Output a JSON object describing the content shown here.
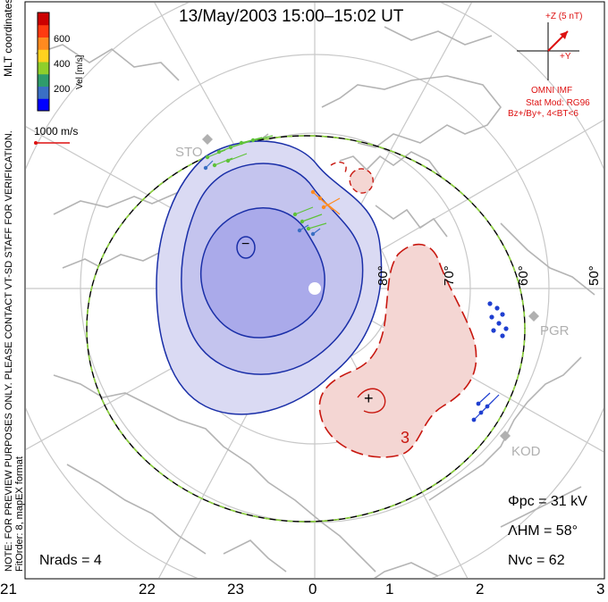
{
  "title": "13/May/2003 15:00–15:02 UT",
  "colorbar": {
    "label": "Vel [m/s]",
    "ticks": [
      "600",
      "400",
      "200"
    ],
    "colors": [
      "#0000ff",
      "#3a6fc4",
      "#2f9c6c",
      "#8fcf2b",
      "#ffd21f",
      "#ff8a1f",
      "#ff3a10",
      "#cc0000"
    ]
  },
  "coordinates_label": "MLT coordinates",
  "reference_vector": "1000 m/s",
  "imf": {
    "z_label": "+Z (5 nT)",
    "y_label": "+Y",
    "source": "OMNI IMF",
    "model": "Stat Mod: RG96",
    "condition": "Bz+/By+, 4<BT<6"
  },
  "latitude_labels": [
    "80°",
    "70°",
    "60°",
    "50°"
  ],
  "mlt_labels": [
    "21",
    "22",
    "23",
    "0",
    "1",
    "2",
    "3"
  ],
  "stations": [
    "STO",
    "PGR",
    "KOD"
  ],
  "contour_labels": {
    "min_marker": "−",
    "max_marker": "+",
    "positive_label": "3"
  },
  "stats": {
    "phi_pc": "Φpc = 31 kV",
    "lambda_hm": "ΛHM = 58°",
    "n_vc": "Nvc = 62",
    "n_rads": "Nrads = 4"
  },
  "notes": {
    "preview": "NOTE: FOR PREVIEW PURPOSES ONLY. PLEASE CONTACT VT-SD STAFF FOR VERIFICATION.",
    "fit": "FitOrder: 8, mapEX format"
  },
  "colors": {
    "negative_fill": "#c9c9f0",
    "negative_inner": "#a7a7ea",
    "negative_line": "#1a2fa8",
    "positive_fill": "#f4d6d3",
    "positive_line": "#c8170f",
    "coast": "#b4b4b4",
    "grid": "#c8c8c8",
    "boundary_green": "#8cd23c"
  }
}
